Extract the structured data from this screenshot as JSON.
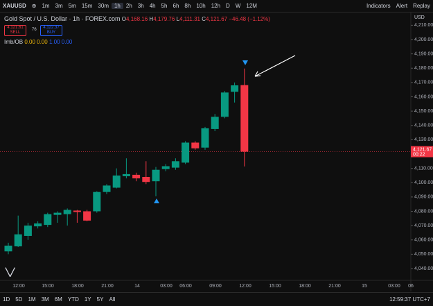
{
  "toolbar": {
    "symbol": "XAUUSD",
    "intervals": [
      "1m",
      "3m",
      "5m",
      "15m",
      "30m",
      "1h",
      "2h",
      "3h",
      "4h",
      "5h",
      "6h",
      "8h",
      "10h",
      "12h",
      "D",
      "W",
      "12M"
    ],
    "indicators": "Indicators",
    "alert": "Alert",
    "replay": "Replay"
  },
  "legend": {
    "title": "Gold Spot / U.S. Dollar · 1h · FOREX.com",
    "o_label": "O",
    "o": "4,168.16",
    "h_label": "H",
    "h": "4,179.76",
    "l_label": "L",
    "l": "4,111.31",
    "c_label": "C",
    "c": "4,121.67",
    "change": "−46.48 (−1.12%)",
    "sell_price": "4,121.61",
    "sell": "SELL",
    "spread": "76",
    "buy_price": "4,122.37",
    "buy": "BUY",
    "indicator": "Imb/OB",
    "indicator_values": [
      "0.00",
      "0.00",
      "1.00",
      "0.00"
    ]
  },
  "price_axis": {
    "currency": "USD",
    "last_price": "4,121.67",
    "countdown": "00:22"
  },
  "time_axis": [
    "12:00",
    "15:00",
    "18:00",
    "21:00",
    "14",
    "03:00",
    "06:00",
    "09:00",
    "12:00",
    "15:00",
    "18:00",
    "21:00",
    "15",
    "03:00",
    "06"
  ],
  "bottom_bar": {
    "ranges": [
      "1D",
      "5D",
      "1M",
      "3M",
      "6M",
      "YTD",
      "1Y",
      "5Y",
      "All"
    ],
    "clock": "12:59:37 UTC+7"
  },
  "chart_data": {
    "type": "candlestick",
    "up_color": "#089981",
    "down_color": "#f23645",
    "open": [
      4052,
      4055.5,
      4062.8,
      4069.5,
      4070.5,
      4077.5,
      4078,
      4080.5,
      4080,
      4080,
      4093.5,
      4096.5,
      4104.5,
      4105.5,
      4104,
      4101,
      4109.5,
      4110.5,
      4114,
      4128,
      4124.5,
      4137.5,
      4146,
      4163.5,
      4168.16
    ],
    "high": [
      4058,
      4077,
      4072,
      4073,
      4079,
      4080,
      4082,
      4081,
      4081,
      4094,
      4099,
      4110,
      4117,
      4107,
      4115,
      4111,
      4113,
      4117,
      4129,
      4129,
      4139,
      4148,
      4164,
      4170,
      4179.76
    ],
    "low": [
      4050,
      4055,
      4060,
      4068,
      4069,
      4072,
      4070,
      4072,
      4073,
      4079,
      4092,
      4096,
      4103,
      4101,
      4099,
      4090.5,
      4108,
      4109,
      4113,
      4123,
      4123,
      4136,
      4145,
      4156,
      4111.31
    ],
    "close": [
      4056,
      4063.9,
      4070,
      4071.5,
      4078,
      4079,
      4081,
      4079.5,
      4073.5,
      4093.5,
      4098,
      4105,
      4106,
      4103,
      4100.5,
      4109,
      4111.5,
      4115,
      4128,
      4124,
      4138,
      4146,
      4163,
      4168,
      4121.67
    ],
    "ylim": [
      4033.7,
      4216
    ],
    "yticks": [
      {
        "value": 4040,
        "label": "4,040.00"
      },
      {
        "value": 4050,
        "label": "4,050.00"
      },
      {
        "value": 4060,
        "label": "4,060.00"
      },
      {
        "value": 4070,
        "label": "4,070.00"
      },
      {
        "value": 4080,
        "label": "4,080.00"
      },
      {
        "value": 4090,
        "label": "4,090.00"
      },
      {
        "value": 4100,
        "label": "4,100.00"
      },
      {
        "value": 4110,
        "label": "4,110.00"
      },
      {
        "value": 4130,
        "label": "4,130.00"
      },
      {
        "value": 4140,
        "label": "4,140.00"
      },
      {
        "value": 4150,
        "label": "4,150.00"
      },
      {
        "value": 4160,
        "label": "4,160.00"
      },
      {
        "value": 4170,
        "label": "4,170.00"
      },
      {
        "value": 4180,
        "label": "4,180.00"
      },
      {
        "value": 4190,
        "label": "4,190.00"
      },
      {
        "value": 4200,
        "label": "4,200.00"
      },
      {
        "value": 4210,
        "label": "4,210.00"
      }
    ],
    "last_price": 4121.67
  }
}
